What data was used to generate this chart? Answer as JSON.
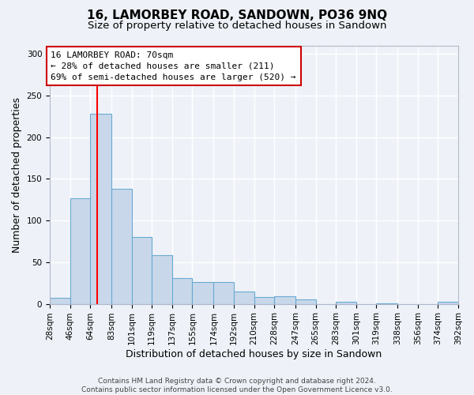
{
  "title": "16, LAMORBEY ROAD, SANDOWN, PO36 9NQ",
  "subtitle": "Size of property relative to detached houses in Sandown",
  "xlabel": "Distribution of detached houses by size in Sandown",
  "ylabel": "Number of detached properties",
  "bar_color": "#c8d8ea",
  "bar_edge_color": "#6aaad4",
  "background_color": "#eef2f8",
  "grid_color": "#ffffff",
  "vline_x": 70,
  "vline_color": "red",
  "annotation_line1": "16 LAMORBEY ROAD: 70sqm",
  "annotation_line2": "← 28% of detached houses are smaller (211)",
  "annotation_line3": "69% of semi-detached houses are larger (520) →",
  "annotation_box_color": "white",
  "annotation_box_edge_color": "#cc0000",
  "bins": [
    28,
    46,
    64,
    83,
    101,
    119,
    137,
    155,
    174,
    192,
    210,
    228,
    247,
    265,
    283,
    301,
    319,
    338,
    356,
    374,
    392
  ],
  "counts": [
    7,
    127,
    228,
    138,
    80,
    58,
    31,
    26,
    26,
    15,
    8,
    9,
    5,
    0,
    2,
    0,
    1,
    0,
    0,
    2
  ],
  "ylim": [
    0,
    310
  ],
  "yticks": [
    0,
    50,
    100,
    150,
    200,
    250,
    300
  ],
  "tick_labels": [
    "28sqm",
    "46sqm",
    "64sqm",
    "83sqm",
    "101sqm",
    "119sqm",
    "137sqm",
    "155sqm",
    "174sqm",
    "192sqm",
    "210sqm",
    "228sqm",
    "247sqm",
    "265sqm",
    "283sqm",
    "301sqm",
    "319sqm",
    "338sqm",
    "356sqm",
    "374sqm",
    "392sqm"
  ],
  "footer_text": "Contains HM Land Registry data © Crown copyright and database right 2024.\nContains public sector information licensed under the Open Government Licence v3.0.",
  "title_fontsize": 11,
  "subtitle_fontsize": 9.5,
  "axis_label_fontsize": 9,
  "tick_fontsize": 7.5,
  "annotation_fontsize": 8,
  "footer_fontsize": 6.5
}
